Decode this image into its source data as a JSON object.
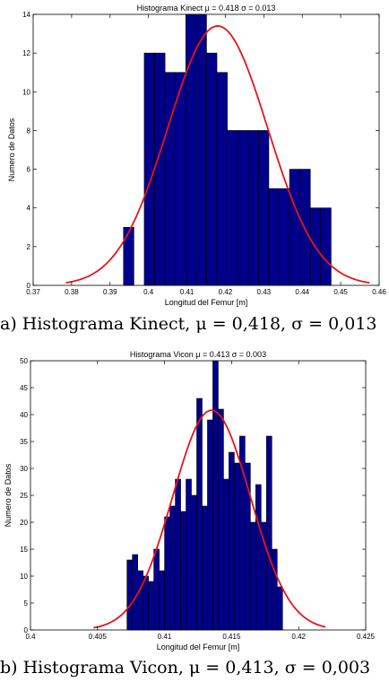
{
  "chart_data": [
    {
      "type": "bar",
      "title": "Histograma Kinect  μ = 0.418  σ = 0.013",
      "xlabel": "Longitud del Femur [m]",
      "ylabel": "Numero de Datos",
      "xlim": [
        0.37,
        0.46
      ],
      "ylim": [
        0,
        14
      ],
      "xticks": [
        "0.37",
        "0.38",
        "0.39",
        "0.4",
        "0.41",
        "0.42",
        "0.43",
        "0.44",
        "0.45",
        "0.46"
      ],
      "yticks": [
        "0",
        "2",
        "4",
        "6",
        "8",
        "10",
        "12",
        "14"
      ],
      "bins": [
        {
          "x0": 0.3935,
          "x1": 0.3962,
          "value": 3
        },
        {
          "x0": 0.3962,
          "x1": 0.3989,
          "value": 0
        },
        {
          "x0": 0.3989,
          "x1": 0.4016,
          "value": 12
        },
        {
          "x0": 0.4016,
          "x1": 0.4043,
          "value": 12
        },
        {
          "x0": 0.4043,
          "x1": 0.407,
          "value": 11
        },
        {
          "x0": 0.407,
          "x1": 0.4097,
          "value": 11
        },
        {
          "x0": 0.4097,
          "x1": 0.4124,
          "value": 14
        },
        {
          "x0": 0.4124,
          "x1": 0.4151,
          "value": 14
        },
        {
          "x0": 0.4151,
          "x1": 0.4178,
          "value": 12
        },
        {
          "x0": 0.4178,
          "x1": 0.4205,
          "value": 11
        },
        {
          "x0": 0.4205,
          "x1": 0.4232,
          "value": 8
        },
        {
          "x0": 0.4232,
          "x1": 0.4259,
          "value": 8
        },
        {
          "x0": 0.4259,
          "x1": 0.4286,
          "value": 8
        },
        {
          "x0": 0.4286,
          "x1": 0.4313,
          "value": 8
        },
        {
          "x0": 0.4313,
          "x1": 0.434,
          "value": 5
        },
        {
          "x0": 0.434,
          "x1": 0.4367,
          "value": 5
        },
        {
          "x0": 0.4367,
          "x1": 0.4394,
          "value": 6
        },
        {
          "x0": 0.4394,
          "x1": 0.4421,
          "value": 6
        },
        {
          "x0": 0.4421,
          "x1": 0.4448,
          "value": 4
        },
        {
          "x0": 0.4448,
          "x1": 0.4475,
          "value": 4
        }
      ],
      "fit": {
        "mu": 0.418,
        "sigma": 0.013,
        "peak": 13.4,
        "x_start": 0.3785,
        "x_end": 0.4575
      },
      "bar_color": "#00008b",
      "curve_color": "#e8141a",
      "caption": "a) Histograma Kinect, μ = 0,418, σ = 0,013"
    },
    {
      "type": "bar",
      "title": "Histograma Vicon  μ = 0.413  σ = 0.003",
      "xlabel": "Longitud del Femur [m]",
      "ylabel": "Numero de Datos",
      "xlim": [
        0.4,
        0.425
      ],
      "ylim": [
        0,
        50
      ],
      "xticks": [
        "0.4",
        "0.405",
        "0.41",
        "0.415",
        "0.42",
        "0.425"
      ],
      "yticks": [
        "0",
        "5",
        "10",
        "15",
        "20",
        "25",
        "30",
        "35",
        "40",
        "45",
        "50"
      ],
      "bins": [
        {
          "x0": 0.4072,
          "x1": 0.4076,
          "value": 13
        },
        {
          "x0": 0.4076,
          "x1": 0.408,
          "value": 14
        },
        {
          "x0": 0.408,
          "x1": 0.4084,
          "value": 11
        },
        {
          "x0": 0.4084,
          "x1": 0.4088,
          "value": 10
        },
        {
          "x0": 0.4088,
          "x1": 0.4092,
          "value": 9
        },
        {
          "x0": 0.4092,
          "x1": 0.4096,
          "value": 15
        },
        {
          "x0": 0.4096,
          "x1": 0.41,
          "value": 11
        },
        {
          "x0": 0.41,
          "x1": 0.4104,
          "value": 21
        },
        {
          "x0": 0.4104,
          "x1": 0.4108,
          "value": 23
        },
        {
          "x0": 0.4108,
          "x1": 0.4112,
          "value": 28
        },
        {
          "x0": 0.4112,
          "x1": 0.4116,
          "value": 22
        },
        {
          "x0": 0.4116,
          "x1": 0.412,
          "value": 28
        },
        {
          "x0": 0.412,
          "x1": 0.4124,
          "value": 25
        },
        {
          "x0": 0.4124,
          "x1": 0.4128,
          "value": 43
        },
        {
          "x0": 0.4128,
          "x1": 0.4132,
          "value": 23
        },
        {
          "x0": 0.4132,
          "x1": 0.4136,
          "value": 39
        },
        {
          "x0": 0.4136,
          "x1": 0.414,
          "value": 50
        },
        {
          "x0": 0.414,
          "x1": 0.4144,
          "value": 41
        },
        {
          "x0": 0.4144,
          "x1": 0.4148,
          "value": 28
        },
        {
          "x0": 0.4148,
          "x1": 0.4152,
          "value": 33
        },
        {
          "x0": 0.4152,
          "x1": 0.4156,
          "value": 31
        },
        {
          "x0": 0.4156,
          "x1": 0.416,
          "value": 36
        },
        {
          "x0": 0.416,
          "x1": 0.4164,
          "value": 31
        },
        {
          "x0": 0.4164,
          "x1": 0.4168,
          "value": 20
        },
        {
          "x0": 0.4168,
          "x1": 0.4172,
          "value": 27
        },
        {
          "x0": 0.4172,
          "x1": 0.4176,
          "value": 20
        },
        {
          "x0": 0.4176,
          "x1": 0.418,
          "value": 36
        },
        {
          "x0": 0.418,
          "x1": 0.4184,
          "value": 15
        },
        {
          "x0": 0.4184,
          "x1": 0.4188,
          "value": 8
        }
      ],
      "fit": {
        "mu": 0.4135,
        "sigma": 0.0029,
        "peak": 40.8,
        "x_start": 0.4047,
        "x_end": 0.422
      },
      "bar_color": "#00008b",
      "curve_color": "#e8141a",
      "caption": "b) Histograma Vicon, μ = 0,413, σ = 0,003"
    }
  ]
}
